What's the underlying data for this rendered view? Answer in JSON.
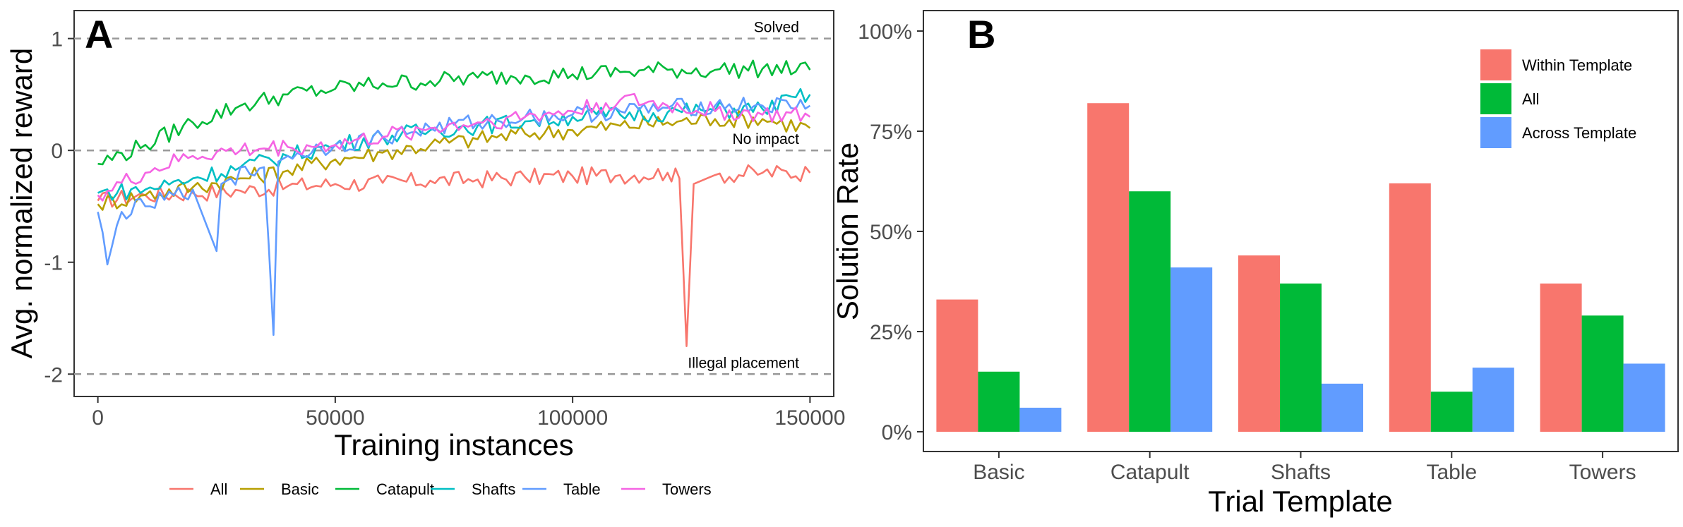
{
  "chart_data": [
    {
      "panel": "A",
      "type": "line",
      "xlabel": "Training instances",
      "ylabel": "Avg. normalized reward",
      "xlim": [
        -5000,
        155000
      ],
      "ylim": [
        -2.2,
        1.25
      ],
      "x_ticks": [
        0,
        50000,
        100000,
        150000
      ],
      "x_tick_labels": [
        "0",
        "50000",
        "100000",
        "150000"
      ],
      "y_ticks": [
        1,
        0,
        -1,
        -2
      ],
      "y_tick_labels": [
        "1",
        "0",
        "-1",
        "-2"
      ],
      "grid": false,
      "legend_position": "bottom",
      "reference_lines": [
        {
          "y": 1,
          "label": "Solved"
        },
        {
          "y": 0,
          "label": "No impact"
        },
        {
          "y": -2,
          "label": "Illegal placement"
        }
      ],
      "series": [
        {
          "name": "All",
          "color": "#F8766D",
          "x": [
            0,
            10000,
            20000,
            30000,
            40000,
            50000,
            60000,
            70000,
            80000,
            90000,
            100000,
            110000,
            120000,
            122500,
            124000,
            125500,
            130000,
            140000,
            150000
          ],
          "y": [
            -0.45,
            -0.4,
            -0.38,
            -0.36,
            -0.32,
            -0.3,
            -0.29,
            -0.27,
            -0.26,
            -0.24,
            -0.23,
            -0.22,
            -0.2,
            -0.25,
            -1.75,
            -0.3,
            -0.22,
            -0.2,
            -0.2
          ]
        },
        {
          "name": "Basic",
          "color": "#B79F00",
          "x": [
            0,
            10000,
            20000,
            30000,
            40000,
            50000,
            60000,
            70000,
            80000,
            90000,
            100000,
            110000,
            120000,
            130000,
            140000,
            150000
          ],
          "y": [
            -0.48,
            -0.4,
            -0.33,
            -0.25,
            -0.18,
            -0.08,
            -0.02,
            0.05,
            0.1,
            0.15,
            0.18,
            0.22,
            0.25,
            0.28,
            0.28,
            0.2
          ]
        },
        {
          "name": "Catapult",
          "color": "#00BA38",
          "x": [
            0,
            10000,
            20000,
            30000,
            40000,
            50000,
            60000,
            70000,
            80000,
            90000,
            100000,
            110000,
            120000,
            130000,
            140000,
            150000
          ],
          "y": [
            -0.12,
            0.05,
            0.25,
            0.4,
            0.5,
            0.55,
            0.6,
            0.62,
            0.65,
            0.67,
            0.68,
            0.7,
            0.72,
            0.72,
            0.73,
            0.72
          ]
        },
        {
          "name": "Shafts",
          "color": "#00BFC4",
          "x": [
            0,
            10000,
            20000,
            30000,
            40000,
            50000,
            60000,
            70000,
            80000,
            90000,
            100000,
            110000,
            120000,
            130000,
            140000,
            150000
          ],
          "y": [
            -0.38,
            -0.35,
            -0.25,
            -0.15,
            -0.05,
            0.05,
            0.12,
            0.18,
            0.22,
            0.26,
            0.3,
            0.32,
            0.34,
            0.36,
            0.37,
            0.5
          ]
        },
        {
          "name": "Table",
          "color": "#619CFF",
          "x": [
            0,
            2000,
            5000,
            10000,
            20000,
            25000,
            26000,
            28000,
            35000,
            36000,
            37000,
            38000,
            40000,
            50000,
            60000,
            70000,
            80000,
            90000,
            100000,
            110000,
            120000,
            130000,
            140000,
            150000
          ],
          "y": [
            -0.55,
            -1.02,
            -0.55,
            -0.5,
            -0.35,
            -0.9,
            -0.3,
            -0.25,
            -0.15,
            -0.85,
            -1.65,
            -0.1,
            -0.05,
            0.05,
            0.12,
            0.2,
            0.25,
            0.3,
            0.32,
            0.35,
            0.38,
            0.4,
            0.4,
            0.4
          ]
        },
        {
          "name": "Towers",
          "color": "#F564E3",
          "x": [
            0,
            10000,
            20000,
            30000,
            40000,
            50000,
            60000,
            70000,
            80000,
            90000,
            100000,
            110000,
            120000,
            130000,
            140000,
            150000
          ],
          "y": [
            -0.4,
            -0.2,
            -0.05,
            0.0,
            0.03,
            0.05,
            0.12,
            0.2,
            0.25,
            0.3,
            0.35,
            0.45,
            0.4,
            0.35,
            0.32,
            0.3
          ]
        }
      ]
    },
    {
      "panel": "B",
      "type": "bar",
      "xlabel": "Trial Template",
      "ylabel": "Solution Rate",
      "ylim": [
        0,
        1.0
      ],
      "y_ticks": [
        0,
        0.25,
        0.5,
        0.75,
        1.0
      ],
      "y_tick_labels": [
        "0%",
        "25%",
        "50%",
        "75%",
        "100%"
      ],
      "grid": false,
      "legend_position": "top-right",
      "categories": [
        "Basic",
        "Catapult",
        "Shafts",
        "Table",
        "Towers"
      ],
      "series": [
        {
          "name": "Within Template",
          "color": "#F8766D",
          "values": [
            0.33,
            0.82,
            0.44,
            0.62,
            0.37
          ]
        },
        {
          "name": "All",
          "color": "#00BA38",
          "values": [
            0.15,
            0.6,
            0.37,
            0.1,
            0.29
          ]
        },
        {
          "name": "Across Template",
          "color": "#619CFF",
          "values": [
            0.06,
            0.41,
            0.12,
            0.16,
            0.17
          ]
        }
      ]
    }
  ]
}
